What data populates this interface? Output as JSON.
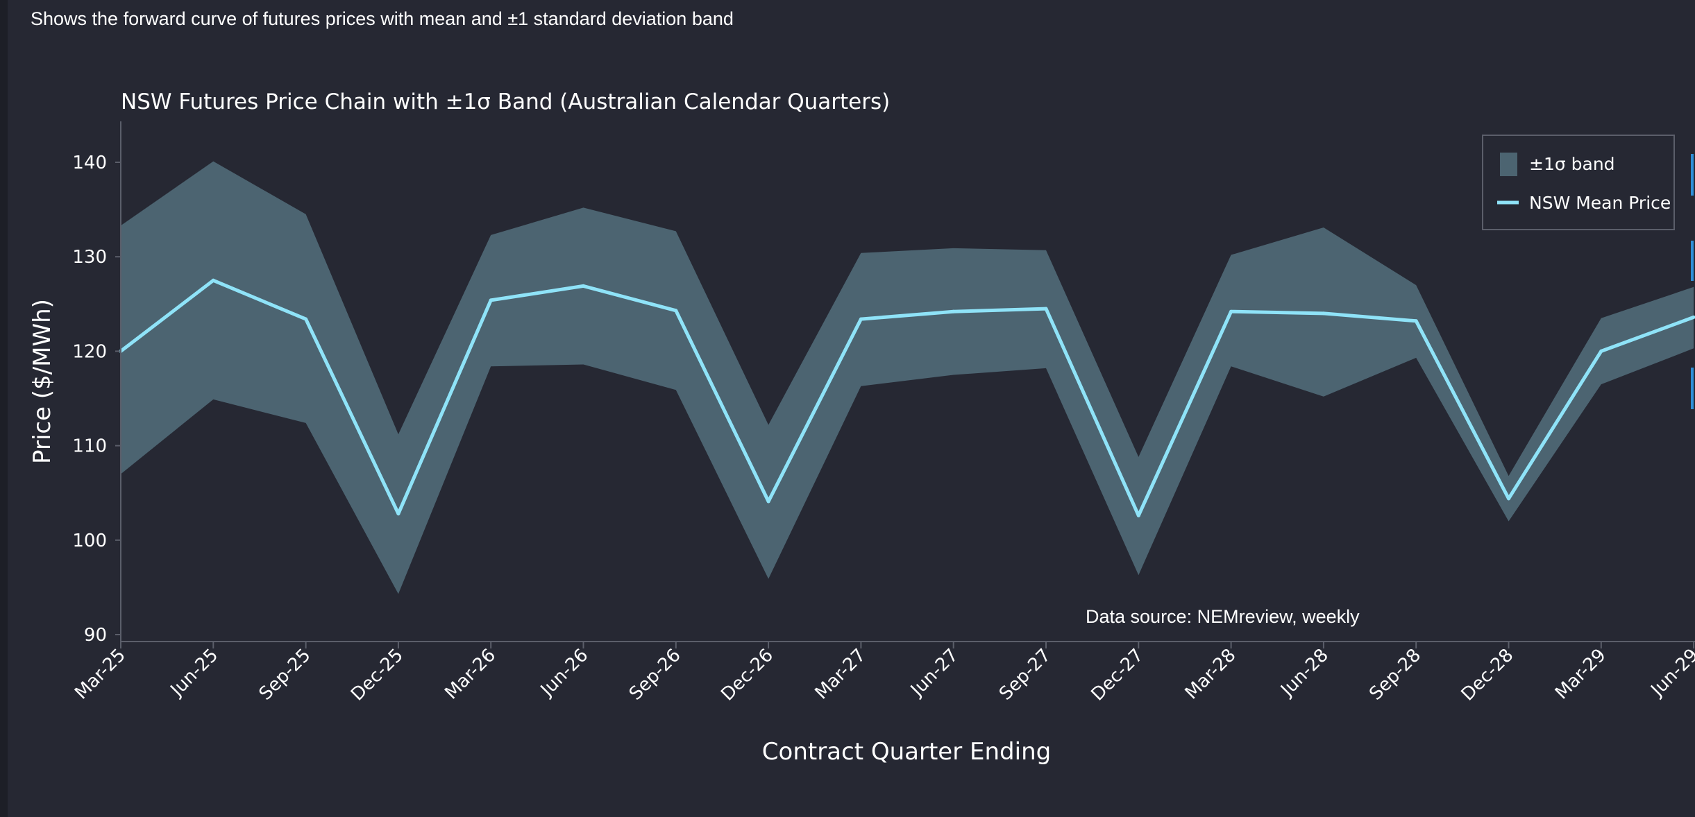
{
  "page": {
    "subtitle": "Shows the forward curve of futures prices with mean and ±1 standard deviation band"
  },
  "colors": {
    "background": "#262833",
    "band_fill": "#4c6471",
    "mean_line": "#8fe3f8",
    "axis": "#5b5e6a",
    "legend_border": "#5b5e6a",
    "side_markers": "#2f8fd8"
  },
  "chart_data": {
    "type": "area",
    "title": "NSW Futures Price Chain with ±1σ Band (Australian Calendar Quarters)",
    "xlabel": "Contract Quarter Ending",
    "ylabel": "Price ($/MWh)",
    "ylim": [
      90,
      145
    ],
    "yticks": [
      90,
      100,
      110,
      120,
      130,
      140
    ],
    "grid": false,
    "legend_position": "top-right",
    "categories": [
      "Mar-25",
      "Jun-25",
      "Sep-25",
      "Dec-25",
      "Mar-26",
      "Jun-26",
      "Sep-26",
      "Dec-26",
      "Mar-27",
      "Jun-27",
      "Sep-27",
      "Dec-27",
      "Mar-28",
      "Jun-28",
      "Sep-28",
      "Dec-28",
      "Mar-29",
      "Jun-29"
    ],
    "series": [
      {
        "name": "NSW Mean Price",
        "values": [
          120.0,
          127.5,
          123.4,
          102.8,
          125.4,
          126.9,
          124.3,
          104.1,
          123.4,
          124.2,
          124.5,
          102.6,
          124.2,
          124.0,
          123.2,
          104.4,
          120.0,
          123.6
        ]
      },
      {
        "name": "±1σ band",
        "upper": [
          133.3,
          140.1,
          134.5,
          111.2,
          132.3,
          135.2,
          132.7,
          112.2,
          130.4,
          130.9,
          130.7,
          108.8,
          130.2,
          133.1,
          127.0,
          106.8,
          123.5,
          126.8
        ],
        "lower": [
          107.0,
          114.9,
          112.4,
          94.3,
          118.4,
          118.6,
          115.9,
          95.9,
          116.3,
          117.5,
          118.2,
          96.3,
          118.4,
          115.2,
          119.3,
          102.0,
          116.5,
          120.3
        ]
      }
    ],
    "annotations": [
      "Data source: NEMreview, weekly"
    ]
  }
}
